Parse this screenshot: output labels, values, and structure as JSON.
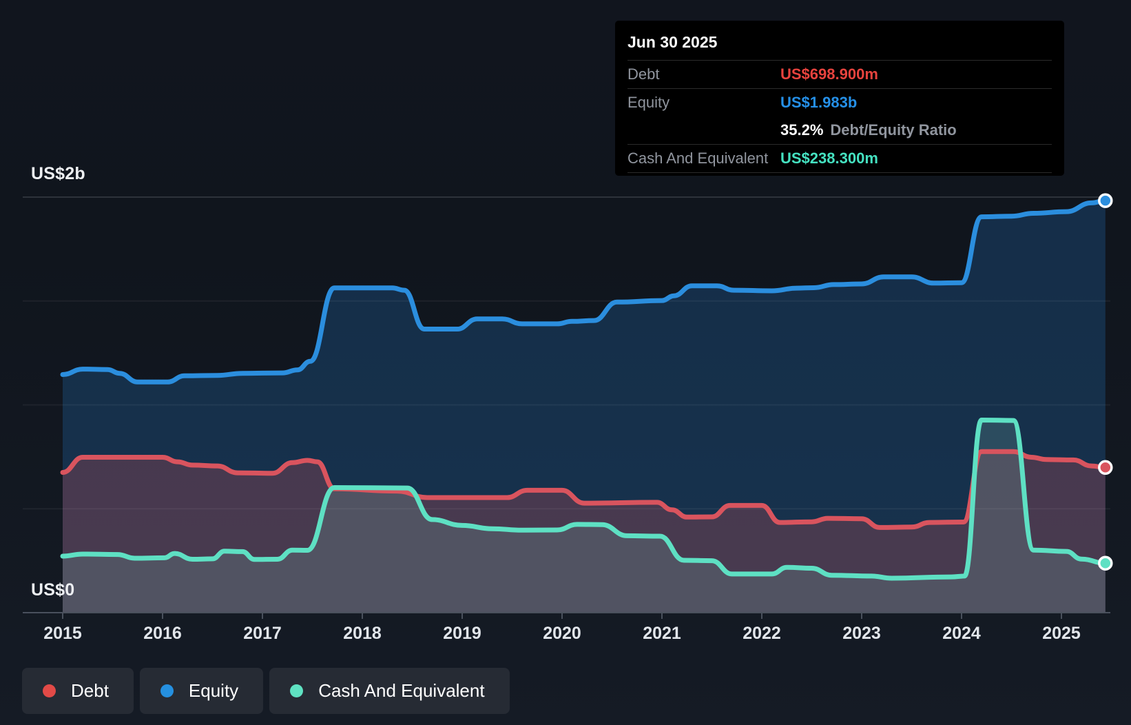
{
  "tooltip": {
    "date": "Jun 30 2025",
    "rows": [
      {
        "label": "Debt",
        "value": "US$698.900m",
        "color": "#e8433e"
      },
      {
        "label": "Equity",
        "value": "US$1.983b",
        "color": "#2590e8"
      },
      {
        "label": "Cash And Equivalent",
        "value": "US$238.300m",
        "color": "#45e2c1"
      }
    ],
    "ratio_value": "35.2%",
    "ratio_label": "Debt/Equity Ratio"
  },
  "legend": {
    "items": [
      {
        "label": "Debt",
        "color": "#e24a47"
      },
      {
        "label": "Equity",
        "color": "#2590e0"
      },
      {
        "label": "Cash And Equivalent",
        "color": "#5fe2c2"
      }
    ]
  },
  "y_axis": {
    "top_label": "US$2b",
    "bottom_label": "US$0"
  },
  "chart_data": {
    "type": "area",
    "title": "Debt, Equity and Cash history",
    "units": "US$ millions",
    "x_domain": [
      2015.0,
      2025.44
    ],
    "ylim_millions": [
      0,
      2000
    ],
    "grid_values_millions": [
      0,
      500,
      1000,
      1500,
      2000
    ],
    "x_ticks": [
      2015,
      2016,
      2017,
      2018,
      2019,
      2020,
      2021,
      2022,
      2023,
      2024,
      2025
    ],
    "legend_position": "bottom-left",
    "series": [
      {
        "name": "Equity",
        "color": "#2b8ede",
        "fill": "rgba(36,130,215,0.24)",
        "points": [
          [
            2015.0,
            1146
          ],
          [
            2015.2,
            1172
          ],
          [
            2015.45,
            1170
          ],
          [
            2015.57,
            1152
          ],
          [
            2015.75,
            1110
          ],
          [
            2016.05,
            1110
          ],
          [
            2016.22,
            1140
          ],
          [
            2016.55,
            1142
          ],
          [
            2016.8,
            1152
          ],
          [
            2017.2,
            1154
          ],
          [
            2017.35,
            1168
          ],
          [
            2017.48,
            1210
          ],
          [
            2017.72,
            1563
          ],
          [
            2018.3,
            1563
          ],
          [
            2018.42,
            1552
          ],
          [
            2018.62,
            1365
          ],
          [
            2018.95,
            1365
          ],
          [
            2019.15,
            1414
          ],
          [
            2019.4,
            1414
          ],
          [
            2019.6,
            1390
          ],
          [
            2019.95,
            1390
          ],
          [
            2020.1,
            1402
          ],
          [
            2020.32,
            1406
          ],
          [
            2020.55,
            1495
          ],
          [
            2021.0,
            1502
          ],
          [
            2021.12,
            1525
          ],
          [
            2021.3,
            1573
          ],
          [
            2021.55,
            1573
          ],
          [
            2021.72,
            1552
          ],
          [
            2022.1,
            1549
          ],
          [
            2022.35,
            1562
          ],
          [
            2022.52,
            1564
          ],
          [
            2022.72,
            1579
          ],
          [
            2023.0,
            1582
          ],
          [
            2023.22,
            1616
          ],
          [
            2023.5,
            1616
          ],
          [
            2023.72,
            1586
          ],
          [
            2024.0,
            1588
          ],
          [
            2024.2,
            1905
          ],
          [
            2024.5,
            1908
          ],
          [
            2024.72,
            1922
          ],
          [
            2025.05,
            1930
          ],
          [
            2025.3,
            1972
          ],
          [
            2025.44,
            1983
          ]
        ]
      },
      {
        "name": "Debt",
        "color": "#d9545e",
        "fill": "rgba(214,80,90,0.26)",
        "points": [
          [
            2015.0,
            675
          ],
          [
            2015.2,
            748
          ],
          [
            2016.0,
            748
          ],
          [
            2016.15,
            726
          ],
          [
            2016.3,
            710
          ],
          [
            2016.55,
            706
          ],
          [
            2016.75,
            673
          ],
          [
            2017.1,
            671
          ],
          [
            2017.3,
            722
          ],
          [
            2017.45,
            733
          ],
          [
            2017.55,
            726
          ],
          [
            2017.72,
            596
          ],
          [
            2018.35,
            585
          ],
          [
            2018.65,
            554
          ],
          [
            2019.45,
            554
          ],
          [
            2019.65,
            589
          ],
          [
            2020.0,
            589
          ],
          [
            2020.22,
            527
          ],
          [
            2020.95,
            531
          ],
          [
            2021.1,
            495
          ],
          [
            2021.25,
            460
          ],
          [
            2021.5,
            461
          ],
          [
            2021.68,
            516
          ],
          [
            2022.0,
            516
          ],
          [
            2022.18,
            434
          ],
          [
            2022.5,
            437
          ],
          [
            2022.66,
            454
          ],
          [
            2023.0,
            452
          ],
          [
            2023.18,
            410
          ],
          [
            2023.5,
            412
          ],
          [
            2023.68,
            434
          ],
          [
            2024.02,
            436
          ],
          [
            2024.2,
            775
          ],
          [
            2024.52,
            775
          ],
          [
            2024.7,
            748
          ],
          [
            2024.85,
            737
          ],
          [
            2025.12,
            735
          ],
          [
            2025.3,
            706
          ],
          [
            2025.44,
            699
          ]
        ]
      },
      {
        "name": "Cash And Equivalent",
        "color": "#5ee0c3",
        "fill": "rgba(104,152,147,0.28)",
        "points": [
          [
            2015.0,
            272
          ],
          [
            2015.2,
            282
          ],
          [
            2015.55,
            280
          ],
          [
            2015.72,
            262
          ],
          [
            2016.02,
            264
          ],
          [
            2016.12,
            285
          ],
          [
            2016.3,
            257
          ],
          [
            2016.5,
            259
          ],
          [
            2016.62,
            296
          ],
          [
            2016.8,
            294
          ],
          [
            2016.92,
            256
          ],
          [
            2017.15,
            257
          ],
          [
            2017.3,
            301
          ],
          [
            2017.45,
            300
          ],
          [
            2017.72,
            602
          ],
          [
            2018.45,
            600
          ],
          [
            2018.7,
            448
          ],
          [
            2019.0,
            420
          ],
          [
            2019.3,
            404
          ],
          [
            2019.6,
            397
          ],
          [
            2019.95,
            398
          ],
          [
            2020.15,
            425
          ],
          [
            2020.4,
            424
          ],
          [
            2020.65,
            370
          ],
          [
            2020.98,
            368
          ],
          [
            2021.22,
            252
          ],
          [
            2021.5,
            250
          ],
          [
            2021.7,
            186
          ],
          [
            2022.1,
            186
          ],
          [
            2022.25,
            218
          ],
          [
            2022.5,
            214
          ],
          [
            2022.7,
            180
          ],
          [
            2023.1,
            176
          ],
          [
            2023.3,
            166
          ],
          [
            2023.9,
            172
          ],
          [
            2024.03,
            176
          ],
          [
            2024.2,
            927
          ],
          [
            2024.52,
            925
          ],
          [
            2024.72,
            301
          ],
          [
            2025.05,
            295
          ],
          [
            2025.2,
            258
          ],
          [
            2025.44,
            238
          ]
        ]
      }
    ],
    "end_markers": [
      {
        "series": "Equity",
        "value_label": "US$1.983b"
      },
      {
        "series": "Debt",
        "value_label": "US$698.900m"
      },
      {
        "series": "Cash And Equivalent",
        "value_label": "US$238.300m"
      }
    ]
  }
}
